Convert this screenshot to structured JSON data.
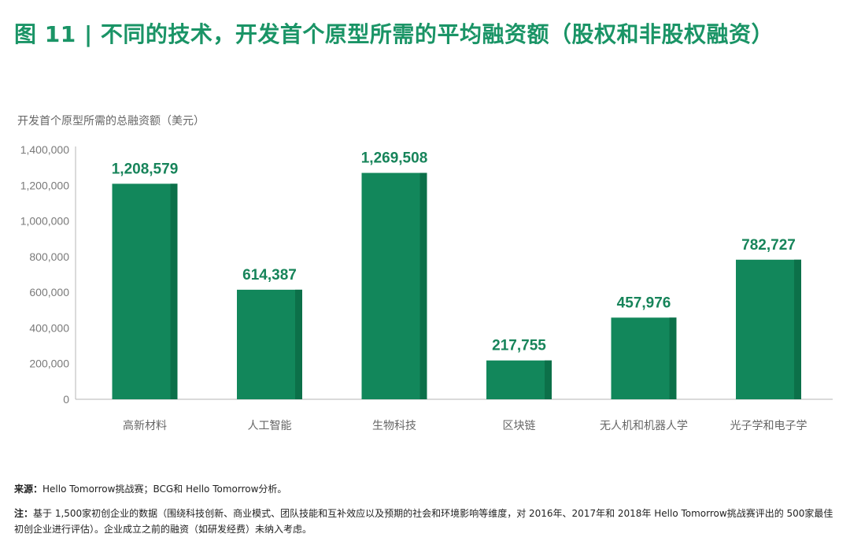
{
  "title": "图 11 | 不同的技术，开发首个原型所需的平均融资额（股权和非股权融资）",
  "source_label": "来源：",
  "source_text": "Hello Tomorrow挑战赛；BCG和 Hello Tomorrow分析。",
  "note_label": "注：",
  "note_text": "基于 1,500家初创企业的数据（围绕科技创新、商业模式、团队技能和互补效应以及预期的社会和环境影响等维度，对 2016年、2017年和 2018年 Hello Tomorrow挑战赛评出的 500家最佳初创企业进行评估）。企业成立之前的融资（如研发经费）未纳入考虑。",
  "colors": {
    "bar": "#12875b",
    "bar_shade": "#0c7049",
    "title": "#1a9466",
    "axis": "#b5b5b5"
  },
  "chart_data": {
    "type": "bar",
    "title": "图 11 | 不同的技术，开发首个原型所需的平均融资额（股权和非股权融资）",
    "xlabel": "",
    "ylabel": "开发首个原型所需的总融资额（美元）",
    "ylim": [
      0,
      1400000
    ],
    "yticks": [
      0,
      200000,
      400000,
      600000,
      800000,
      1000000,
      1200000,
      1400000
    ],
    "ytick_labels": [
      "0",
      "200,000",
      "400,000",
      "600,000",
      "800,000",
      "1,000,000",
      "1,200,000",
      "1,400,000"
    ],
    "categories": [
      "高新材料",
      "人工智能",
      "生物科技",
      "区块链",
      "无人机和机器人学",
      "光子学和电子学"
    ],
    "values": [
      1208579,
      614387,
      1269508,
      217755,
      457976,
      782727
    ],
    "value_labels": [
      "1,208,579",
      "614,387",
      "1,269,508",
      "217,755",
      "457,976",
      "782,727"
    ],
    "grid": false,
    "legend": "none"
  }
}
